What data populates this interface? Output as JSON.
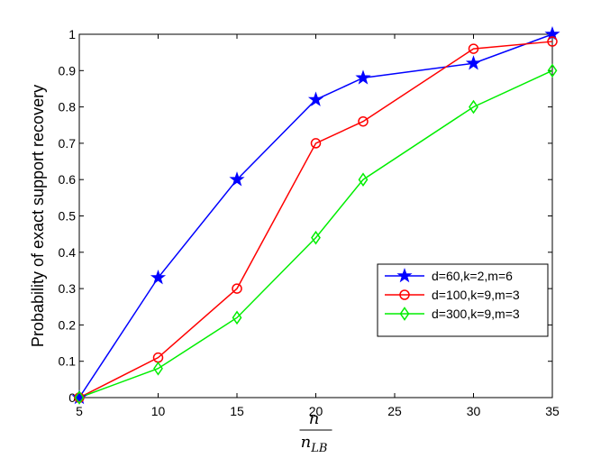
{
  "chart_data": {
    "type": "line",
    "xlabel": "n / n_LB",
    "xlabel_numerator": "n",
    "xlabel_denominator": "n",
    "xlabel_denominator_subscript": "LB",
    "ylabel": "Probability of exact support recovery",
    "xlim": [
      5,
      35
    ],
    "ylim": [
      0,
      1
    ],
    "xticks": [
      5,
      10,
      15,
      20,
      25,
      30,
      35
    ],
    "yticks": [
      0,
      0.1,
      0.2,
      0.3,
      0.4,
      0.5,
      0.6,
      0.7,
      0.8,
      0.9,
      1
    ],
    "grid": false,
    "legend_position": "lower-right",
    "series": [
      {
        "name": "d=60,k=2,m=6",
        "color": "#0000ff",
        "marker": "star",
        "x": [
          5,
          10,
          15,
          20,
          23,
          30,
          35
        ],
        "y": [
          0,
          0.33,
          0.6,
          0.82,
          0.88,
          0.92,
          1.0
        ]
      },
      {
        "name": "d=100,k=9,m=3",
        "color": "#ff0000",
        "marker": "circle",
        "x": [
          5,
          10,
          15,
          20,
          23,
          30,
          35
        ],
        "y": [
          0,
          0.11,
          0.3,
          0.7,
          0.76,
          0.96,
          0.98
        ]
      },
      {
        "name": "d=300,k=9,m=3",
        "color": "#00ee00",
        "marker": "diamond",
        "x": [
          5,
          10,
          15,
          20,
          23,
          30,
          35
        ],
        "y": [
          0,
          0.08,
          0.22,
          0.44,
          0.6,
          0.8,
          0.9
        ]
      }
    ]
  }
}
